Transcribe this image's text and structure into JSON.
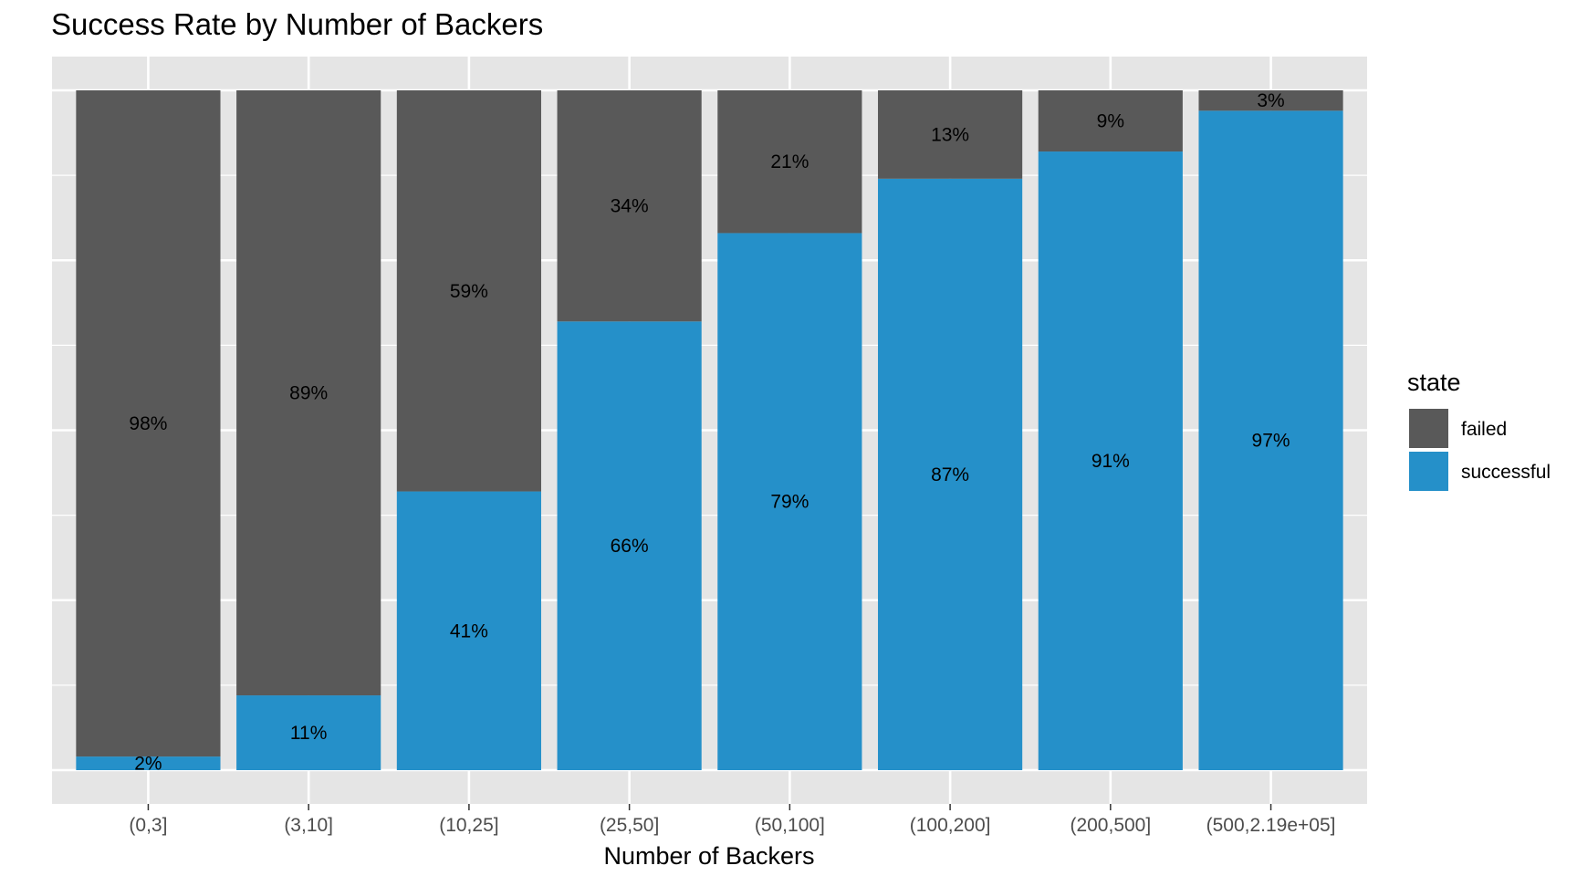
{
  "chart_data": {
    "type": "bar",
    "stacked": true,
    "normalized": true,
    "title": "Success Rate by Number of Backers",
    "xlabel": "Number of Backers",
    "ylabel": "",
    "ylim": [
      0,
      1
    ],
    "grid": true,
    "legend_position": "right",
    "legend_title": "state",
    "categories": [
      "(0,3]",
      "(3,10]",
      "(10,25]",
      "(25,50]",
      "(50,100]",
      "(100,200]",
      "(200,500]",
      "(500,2.19e+05]"
    ],
    "series": [
      {
        "name": "failed",
        "color": "#595959",
        "values": [
          0.98,
          0.89,
          0.59,
          0.34,
          0.21,
          0.13,
          0.09,
          0.03
        ],
        "labels": [
          "98%",
          "89%",
          "59%",
          "34%",
          "21%",
          "13%",
          "9%",
          "3%"
        ]
      },
      {
        "name": "successful",
        "color": "#2590c9",
        "values": [
          0.02,
          0.11,
          0.41,
          0.66,
          0.79,
          0.87,
          0.91,
          0.97
        ],
        "labels": [
          "2%",
          "11%",
          "41%",
          "66%",
          "79%",
          "87%",
          "91%",
          "97%"
        ]
      }
    ]
  }
}
